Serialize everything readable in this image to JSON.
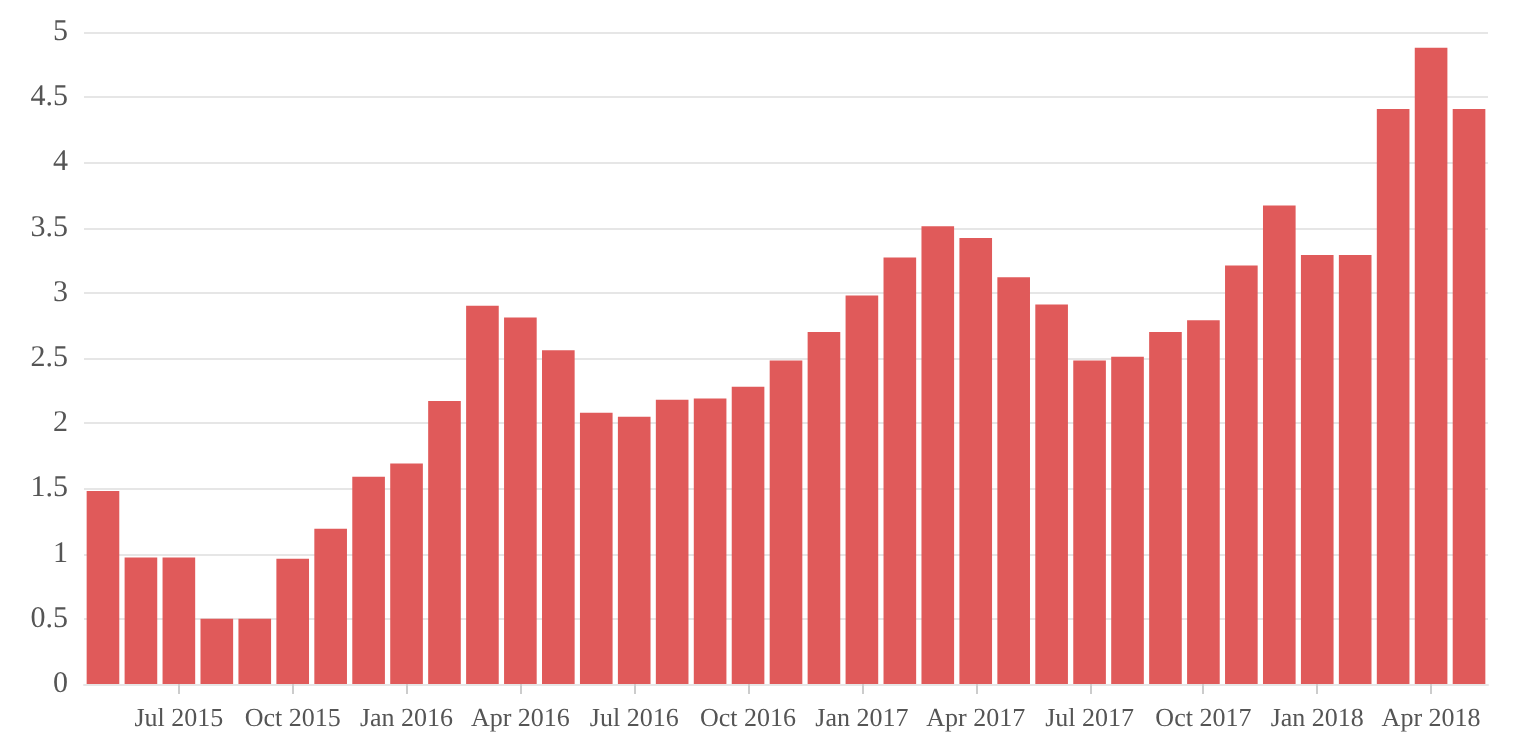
{
  "chart_data": {
    "type": "bar",
    "color": "#e05a5a",
    "categories": [
      null,
      null,
      "Jul 2015",
      null,
      null,
      "Oct 2015",
      null,
      null,
      "Jan 2016",
      null,
      null,
      "Apr 2016",
      null,
      null,
      "Jul 2016",
      null,
      null,
      "Oct 2016",
      null,
      null,
      "Jan 2017",
      null,
      null,
      "Apr 2017",
      null,
      null,
      "Jul 2017",
      null,
      null,
      "Oct 2017",
      null,
      null,
      "Jan 2018",
      null,
      null,
      "Apr 2018",
      null
    ],
    "values": [
      1.48,
      0.97,
      0.97,
      0.5,
      0.5,
      0.96,
      1.19,
      1.59,
      1.69,
      2.17,
      2.9,
      2.81,
      2.56,
      2.08,
      2.05,
      2.18,
      2.19,
      2.28,
      2.48,
      2.7,
      2.98,
      3.27,
      3.51,
      3.42,
      3.12,
      2.91,
      2.48,
      2.51,
      2.7,
      2.79,
      3.21,
      3.67,
      3.29,
      3.29,
      4.41,
      4.88,
      4.41
    ],
    "ylim": [
      0,
      5
    ],
    "yticks": [
      0,
      0.5,
      1,
      1.5,
      2,
      2.5,
      3,
      3.5,
      4,
      4.5,
      5
    ],
    "grid": "y"
  }
}
